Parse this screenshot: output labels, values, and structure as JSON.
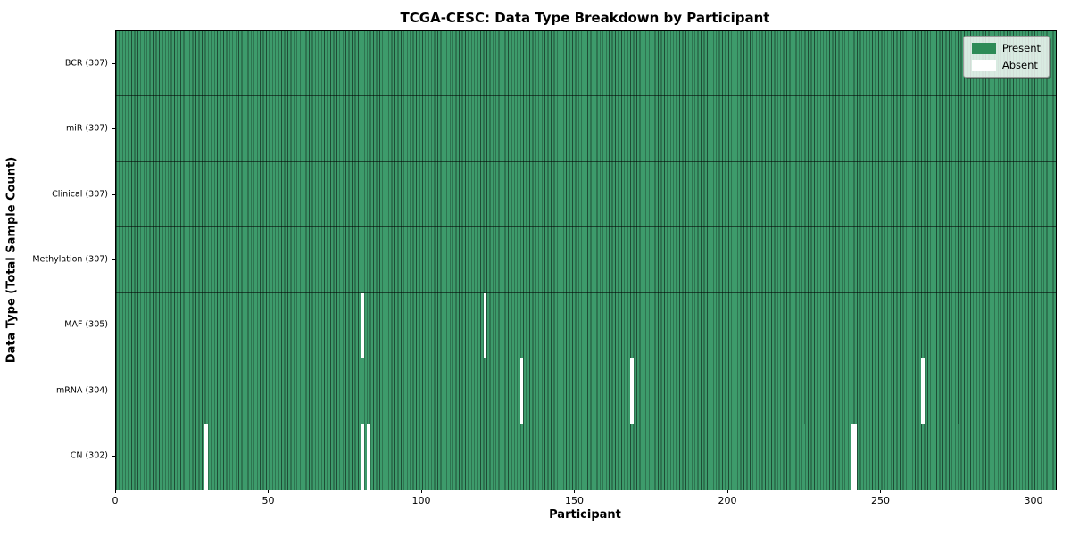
{
  "title": "TCGA-CESC: Data Type Breakdown by Participant",
  "chart_data": {
    "type": "heatmap",
    "title": "TCGA-CESC: Data Type Breakdown by Participant",
    "xlabel": "Participant",
    "ylabel": "Data Type (Total Sample Count)",
    "x_ticks": [
      0,
      50,
      100,
      150,
      200,
      250,
      300
    ],
    "xlim": [
      0,
      307
    ],
    "n_participants": 307,
    "grid": false,
    "legend_position": "upper right",
    "rows": [
      {
        "label": "BCR (307)",
        "name": "BCR",
        "total": 307,
        "absent_participants": []
      },
      {
        "label": "miR (307)",
        "name": "miR",
        "total": 307,
        "absent_participants": []
      },
      {
        "label": "Clinical (307)",
        "name": "Clinical",
        "total": 307,
        "absent_participants": []
      },
      {
        "label": "Methylation (307)",
        "name": "Methylation",
        "total": 307,
        "absent_participants": []
      },
      {
        "label": "MAF (305)",
        "name": "MAF",
        "total": 305,
        "absent_participants": [
          80,
          120
        ]
      },
      {
        "label": "mRNA (304)",
        "name": "mRNA",
        "total": 304,
        "absent_participants": [
          132,
          168,
          263
        ]
      },
      {
        "label": "CN (302)",
        "name": "CN",
        "total": 302,
        "absent_participants": [
          29,
          80,
          82,
          240,
          241
        ]
      }
    ],
    "legend": [
      {
        "label": "Present",
        "color": "#2e8b57"
      },
      {
        "label": "Absent",
        "color": "#ffffff"
      }
    ],
    "colors": {
      "present": "#2e8b57",
      "present_rendered": "#3d9b6b",
      "absent": "#ffffff",
      "cell_edge": "rgba(0,0,0,0.5)"
    }
  }
}
